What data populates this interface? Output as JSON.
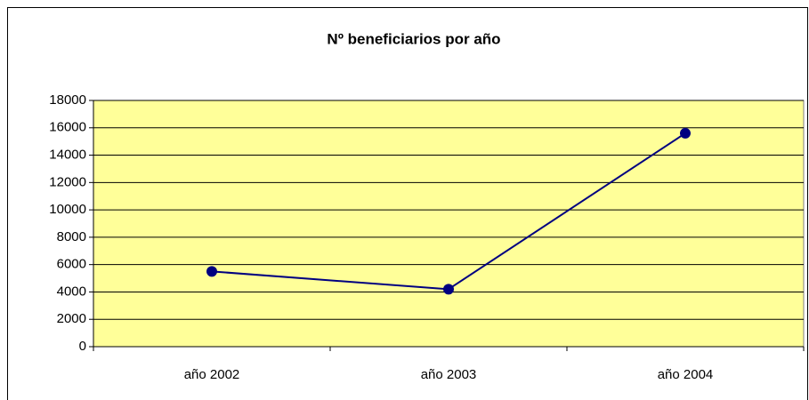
{
  "chart_data": {
    "type": "line",
    "title": "Nº beneficiarios por año",
    "categories": [
      "año 2002",
      "año 2003",
      "año 2004"
    ],
    "series": [
      {
        "name": "Nº beneficiarios",
        "color": "#000080",
        "values": [
          5500,
          4200,
          15600
        ]
      }
    ],
    "ylim": [
      0,
      18000
    ],
    "yticks": [
      0,
      2000,
      4000,
      6000,
      8000,
      10000,
      12000,
      14000,
      16000,
      18000
    ],
    "grid": true,
    "plot_background": "#ffff99"
  }
}
